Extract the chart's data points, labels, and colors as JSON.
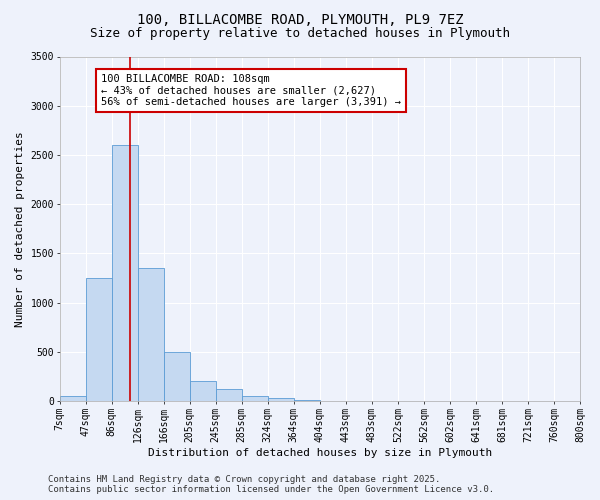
{
  "title": "100, BILLACOMBE ROAD, PLYMOUTH, PL9 7EZ",
  "subtitle": "Size of property relative to detached houses in Plymouth",
  "xlabel": "Distribution of detached houses by size in Plymouth",
  "ylabel": "Number of detached properties",
  "bin_labels": [
    "7sqm",
    "47sqm",
    "86sqm",
    "126sqm",
    "166sqm",
    "205sqm",
    "245sqm",
    "285sqm",
    "324sqm",
    "364sqm",
    "404sqm",
    "443sqm",
    "483sqm",
    "522sqm",
    "562sqm",
    "602sqm",
    "641sqm",
    "681sqm",
    "721sqm",
    "760sqm",
    "800sqm"
  ],
  "bar_heights": [
    50,
    1250,
    2600,
    1350,
    500,
    200,
    120,
    50,
    30,
    10,
    5,
    2,
    1,
    0,
    0,
    0,
    0,
    0,
    0,
    0
  ],
  "bar_color": "#c5d9f1",
  "bar_edge_color": "#5b9bd5",
  "red_line_x": 2.7,
  "ylim": [
    0,
    3500
  ],
  "yticks": [
    0,
    500,
    1000,
    1500,
    2000,
    2500,
    3000,
    3500
  ],
  "annotation_text": "100 BILLACOMBE ROAD: 108sqm\n← 43% of detached houses are smaller (2,627)\n56% of semi-detached houses are larger (3,391) →",
  "annotation_box_color": "#ffffff",
  "annotation_box_edge_color": "#cc0000",
  "footer_line1": "Contains HM Land Registry data © Crown copyright and database right 2025.",
  "footer_line2": "Contains public sector information licensed under the Open Government Licence v3.0.",
  "background_color": "#eef2fb",
  "plot_background": "#eef2fb",
  "grid_color": "#ffffff",
  "title_fontsize": 10,
  "subtitle_fontsize": 9,
  "axis_label_fontsize": 8,
  "tick_fontsize": 7,
  "annotation_fontsize": 7.5,
  "footer_fontsize": 6.5
}
